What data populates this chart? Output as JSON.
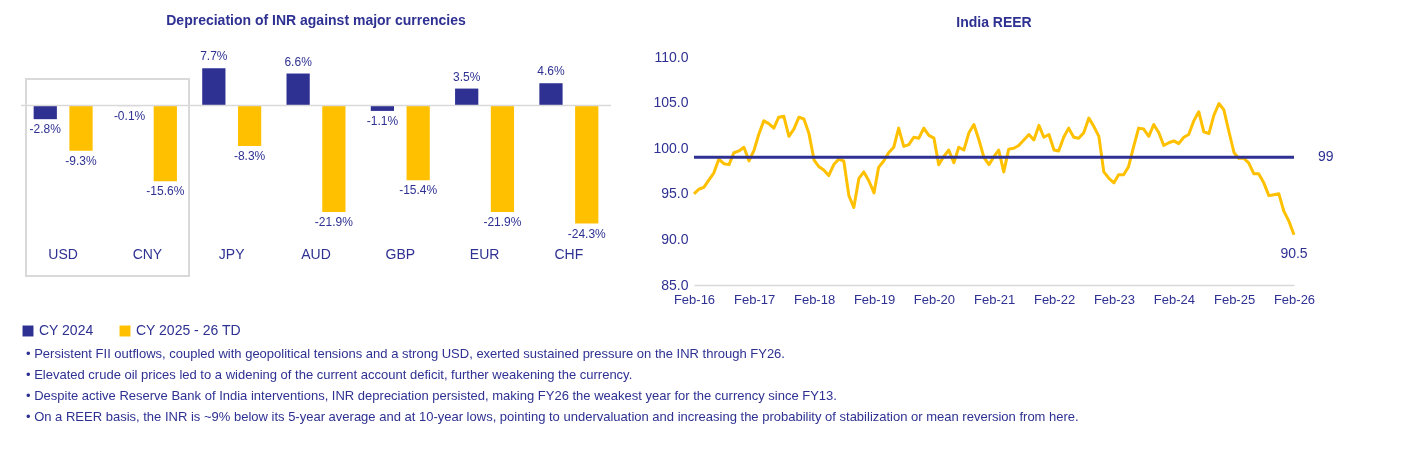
{
  "chart_data": [
    {
      "type": "bar",
      "title": "Depreciation of INR against major currencies",
      "categories": [
        "USD",
        "CNY",
        "JPY",
        "AUD",
        "GBP",
        "EUR",
        "CHF"
      ],
      "legend": "bottom",
      "series": [
        {
          "name": "CY 2024",
          "color": "#2e3192",
          "values": [
            -2.8,
            -0.1,
            7.7,
            6.6,
            -1.1,
            3.5,
            4.6
          ],
          "value_labels": [
            "-2.8%",
            "-0.1%",
            "7.7%",
            "6.6%",
            "-1.1%",
            "3.5%",
            "4.6%"
          ]
        },
        {
          "name": "CY 2025 - 26 TD",
          "color": "#ffc000",
          "values": [
            -9.3,
            -15.6,
            -8.3,
            -21.9,
            -15.4,
            -21.9,
            -24.3
          ],
          "value_labels": [
            "-9.3%",
            "-15.6%",
            "-8.3%",
            "-21.9%",
            "-15.4%",
            "-21.9%",
            "-24.3%"
          ]
        }
      ],
      "annotations": [
        "• Persistent FII outflows, coupled with geopolitical tensions and a strong USD, exerted sustained pressure on the INR through FY26.",
        "• Elevated crude oil prices led to a widening of the current account deficit, further weakening the currency.",
        "• Despite active Reserve Bank of India interventions, INR depreciation persisted, making FY26 the weakest year for the currency since FY13.",
        "• On a REER basis, the INR is ~9% below its 5-year average and at 10-year lows, pointing to undervaluation and increasing the probability of stabilization or mean reversion from here."
      ]
    },
    {
      "type": "line",
      "title": "India REER",
      "xlim": [
        "2016-02",
        "2026-02"
      ],
      "ylim": [
        85,
        110
      ],
      "xticks": [
        {
          "value": "2016-02",
          "label": "Feb-16"
        },
        {
          "value": "2017-02",
          "label": "Feb-17"
        },
        {
          "value": "2018-02",
          "label": "Feb-18"
        },
        {
          "value": "2019-02",
          "label": "Feb-19"
        },
        {
          "value": "2020-02",
          "label": "Feb-20"
        },
        {
          "value": "2021-02",
          "label": "Feb-21"
        },
        {
          "value": "2022-02",
          "label": "Feb-22"
        },
        {
          "value": "2023-02",
          "label": "Feb-23"
        },
        {
          "value": "2024-02",
          "label": "Feb-24"
        },
        {
          "value": "2025-02",
          "label": "Feb-25"
        },
        {
          "value": "2026-02",
          "label": "Feb-26"
        }
      ],
      "yticks": [
        {
          "value": 85,
          "label": "85.0"
        },
        {
          "value": 90,
          "label": "90.0"
        },
        {
          "value": 95,
          "label": "95.0"
        },
        {
          "value": 100,
          "label": "100.0"
        },
        {
          "value": 105,
          "label": "105.0"
        },
        {
          "value": 110,
          "label": "110.0"
        }
      ],
      "x": [
        "2016-02",
        "2016-03",
        "2016-04",
        "2016-05",
        "2016-06",
        "2016-07",
        "2016-08",
        "2016-09",
        "2016-10",
        "2016-11",
        "2016-12",
        "2017-01",
        "2017-02",
        "2017-03",
        "2017-04",
        "2017-05",
        "2017-06",
        "2017-07",
        "2017-08",
        "2017-09",
        "2017-10",
        "2017-11",
        "2017-12",
        "2018-01",
        "2018-02",
        "2018-03",
        "2018-04",
        "2018-05",
        "2018-06",
        "2018-07",
        "2018-08",
        "2018-09",
        "2018-10",
        "2018-11",
        "2018-12",
        "2019-01",
        "2019-02",
        "2019-03",
        "2019-04",
        "2019-05",
        "2019-06",
        "2019-07",
        "2019-08",
        "2019-09",
        "2019-10",
        "2019-11",
        "2019-12",
        "2020-01",
        "2020-02",
        "2020-03",
        "2020-04",
        "2020-05",
        "2020-06",
        "2020-07",
        "2020-08",
        "2020-09",
        "2020-10",
        "2020-11",
        "2020-12",
        "2021-01",
        "2021-02",
        "2021-03",
        "2021-04",
        "2021-05",
        "2021-06",
        "2021-07",
        "2021-08",
        "2021-09",
        "2021-10",
        "2021-11",
        "2021-12",
        "2022-01",
        "2022-02",
        "2022-03",
        "2022-04",
        "2022-05",
        "2022-06",
        "2022-07",
        "2022-08",
        "2022-09",
        "2022-10",
        "2022-11",
        "2022-12",
        "2023-01",
        "2023-02",
        "2023-03",
        "2023-04",
        "2023-05",
        "2023-06",
        "2023-07",
        "2023-08",
        "2023-09",
        "2023-10",
        "2023-11",
        "2023-12",
        "2024-01",
        "2024-02",
        "2024-03",
        "2024-04",
        "2024-05",
        "2024-06",
        "2024-07",
        "2024-08",
        "2024-09",
        "2024-10",
        "2024-11",
        "2024-12",
        "2025-01",
        "2025-02",
        "2025-03",
        "2025-04",
        "2025-05",
        "2025-06",
        "2025-07",
        "2025-08",
        "2025-09",
        "2025-10",
        "2025-11",
        "2025-12",
        "2026-01",
        "2026-02"
      ],
      "series": [
        {
          "color": "#ffc000",
          "values": [
            95.0,
            95.5,
            95.7,
            96.5,
            97.3,
            98.8,
            98.3,
            98.2,
            99.5,
            99.7,
            100.1,
            98.6,
            99.8,
            101.5,
            103.0,
            102.7,
            102.2,
            103.4,
            103.5,
            101.3,
            102.1,
            103.4,
            103.2,
            101.6,
            98.7,
            98.0,
            97.6,
            97.0,
            98.2,
            98.8,
            98.6,
            94.8,
            93.5,
            96.7,
            97.4,
            96.4,
            95.1,
            97.9,
            98.6,
            99.5,
            100.1,
            102.2,
            100.2,
            100.4,
            101.2,
            101.1,
            102.2,
            101.4,
            101.1,
            98.2,
            99.1,
            99.8,
            98.4,
            100.1,
            99.8,
            101.7,
            102.6,
            100.9,
            99.0,
            98.2,
            99.1,
            99.8,
            97.4,
            99.9,
            100.0,
            100.3,
            100.9,
            101.5,
            100.9,
            102.5,
            101.2,
            101.5,
            99.8,
            99.7,
            101.2,
            102.2,
            101.2,
            101.1,
            101.7,
            103.3,
            102.4,
            101.3,
            97.4,
            96.7,
            96.2,
            97.1,
            97.1,
            98.0,
            100.2,
            102.2,
            102.1,
            101.3,
            102.6,
            101.7,
            100.3,
            100.6,
            100.8,
            100.5,
            101.2,
            101.5,
            103.0,
            104.0,
            101.8,
            101.6,
            103.6,
            104.9,
            104.2,
            101.8,
            99.5,
            98.9,
            98.9,
            98.4,
            97.2,
            97.2,
            96.2,
            94.8,
            94.9,
            95.0,
            93.1,
            92.0,
            90.5
          ]
        }
      ],
      "ref_lines": [
        {
          "axis": "y",
          "value": 99,
          "label": "99",
          "color": "#2e3192"
        }
      ],
      "annotations": [
        {
          "text": "90.5",
          "x": "2026-02",
          "y": 90.5
        }
      ]
    }
  ]
}
